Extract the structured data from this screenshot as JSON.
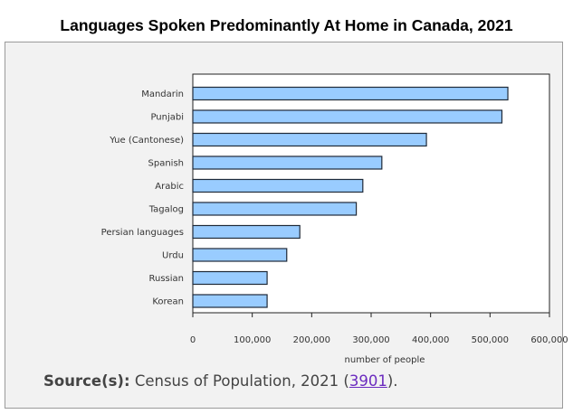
{
  "chart_data": {
    "type": "bar",
    "orientation": "horizontal",
    "title": "Languages Spoken Predominantly At Home in Canada, 2021",
    "categories": [
      "Mandarin",
      "Punjabi",
      "Yue (Cantonese)",
      "Spanish",
      "Arabic",
      "Tagalog",
      "Persian languages",
      "Urdu",
      "Russian",
      "Korean"
    ],
    "values": [
      530000,
      520000,
      393000,
      318000,
      286000,
      275000,
      180000,
      158000,
      125000,
      125000
    ],
    "xlabel": "number of people",
    "ylabel": "",
    "xlim": [
      0,
      600000
    ],
    "xticks": [
      "0",
      "100,000",
      "200,000",
      "300,000",
      "400,000",
      "500,000",
      "600,000"
    ],
    "grid": false,
    "bar_color": "#99ccff",
    "bar_edge_color": "#1f2a38"
  },
  "source": {
    "label": "Source(s):",
    "text": "Census of Population, 2021 (",
    "link": "3901",
    "suffix": ")."
  }
}
